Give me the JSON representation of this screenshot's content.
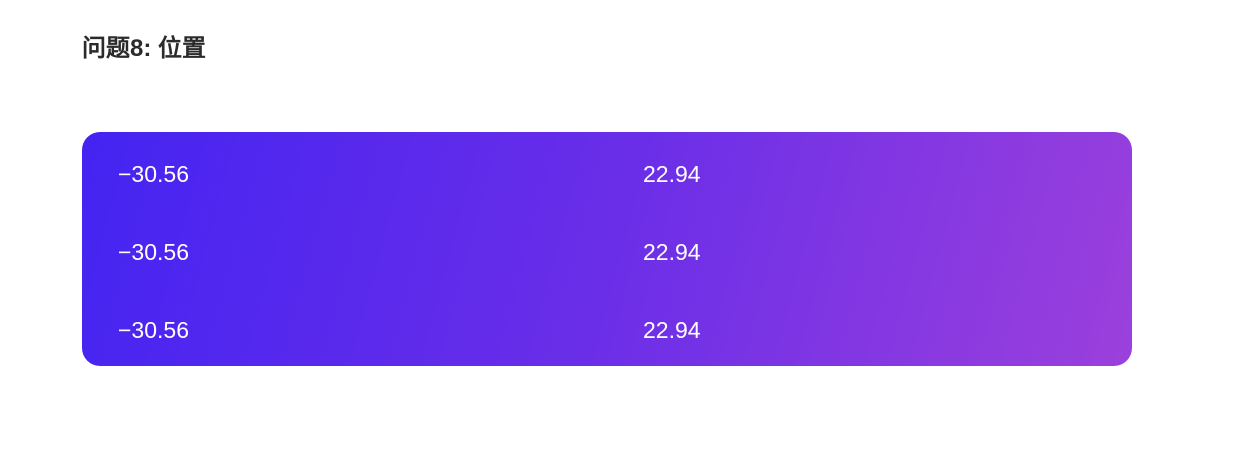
{
  "header": {
    "title": "问题8: 位置"
  },
  "position_panel": {
    "gradient_start": "#4424f2",
    "gradient_end": "#9b40dc",
    "rows": [
      {
        "x": "−30.56",
        "y": "22.94"
      },
      {
        "x": "−30.56",
        "y": "22.94"
      },
      {
        "x": "−30.56",
        "y": "22.94"
      }
    ]
  }
}
